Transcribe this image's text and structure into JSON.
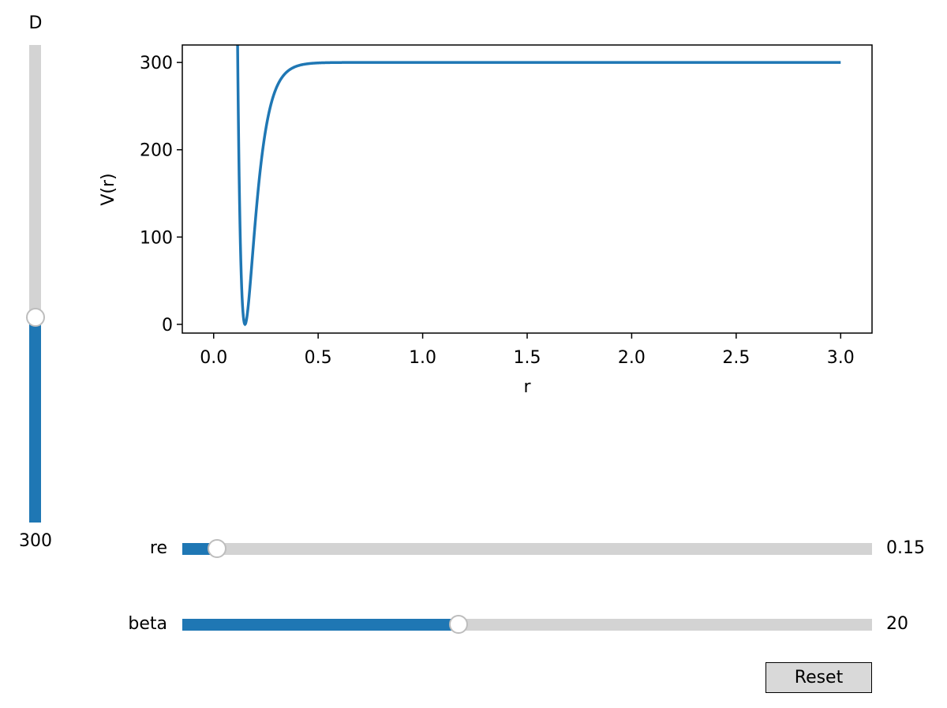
{
  "sliders": {
    "D": {
      "label": "D",
      "value_text": "300",
      "fraction": 0.43
    },
    "re": {
      "label": "re",
      "value_text": "0.15",
      "fraction": 0.05
    },
    "beta": {
      "label": "beta",
      "value_text": "20",
      "fraction": 0.4
    }
  },
  "reset_label": "Reset",
  "colors": {
    "line": "#1f77b4",
    "track": "#d3d3d3",
    "button": "#d9d9d9"
  },
  "chart_data": {
    "type": "line",
    "xlabel": "r",
    "ylabel": "V(r)",
    "xlim": [
      -0.15,
      3.15
    ],
    "ylim": [
      -10,
      320
    ],
    "xticks": [
      0.0,
      0.5,
      1.0,
      1.5,
      2.0,
      2.5,
      3.0
    ],
    "xtick_labels": [
      "0.0",
      "0.5",
      "1.0",
      "1.5",
      "2.0",
      "2.5",
      "3.0"
    ],
    "yticks": [
      0,
      100,
      200,
      300
    ],
    "ytick_labels": [
      "0",
      "100",
      "200",
      "300"
    ],
    "series": [
      {
        "function": "morse",
        "D": 300,
        "re": 0.15,
        "beta": 20,
        "x_range": [
          0.0,
          3.0
        ]
      }
    ]
  }
}
